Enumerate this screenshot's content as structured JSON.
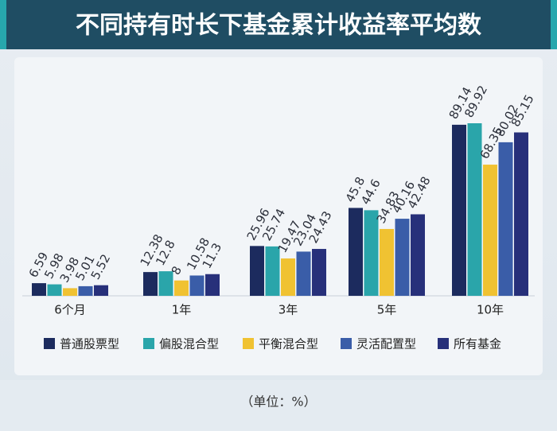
{
  "chart_data": {
    "type": "bar",
    "title": "不同持有时长下基金累计收益率平均数",
    "unit": "（单位：%）",
    "categories": [
      "6个月",
      "1年",
      "3年",
      "5年",
      "10年"
    ],
    "series": [
      {
        "name": "普通股票型",
        "color": "#1c2b5e",
        "values": [
          6.59,
          12.38,
          25.96,
          45.8,
          89.14
        ]
      },
      {
        "name": "偏股混合型",
        "color": "#2aa5aa",
        "values": [
          5.98,
          12.8,
          25.74,
          44.6,
          89.92
        ]
      },
      {
        "name": "平衡混合型",
        "color": "#f0c232",
        "values": [
          3.98,
          8,
          19.47,
          34.83,
          68.35
        ]
      },
      {
        "name": "灵活配置型",
        "color": "#3a5da8",
        "values": [
          5.01,
          10.58,
          23.04,
          40.16,
          80.02
        ]
      },
      {
        "name": "所有基金",
        "color": "#27307a",
        "values": [
          5.52,
          11.3,
          24.43,
          42.48,
          85.15
        ]
      }
    ]
  }
}
